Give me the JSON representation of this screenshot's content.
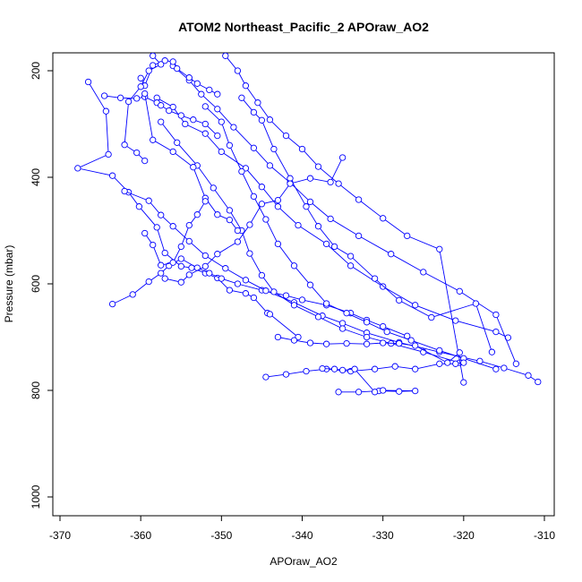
{
  "chart_data": {
    "type": "scatter",
    "title": "ATOM2 Northeast_Pacific_2 APOraw_AO2",
    "xlabel": "APOraw_AO2",
    "ylabel": "Pressure (mbar)",
    "xlim": [
      -370,
      -310
    ],
    "ylim": [
      1000,
      200
    ],
    "y_reversed": true,
    "x_ticks": [
      "-370",
      "-360",
      "-350",
      "-340",
      "-330",
      "-320",
      "-310"
    ],
    "y_ticks": [
      "200",
      "400",
      "600",
      "800",
      "1000"
    ],
    "grid": false,
    "legend": "none",
    "colors": {
      "series": "#0000ff",
      "axes": "#000000"
    },
    "series": [
      {
        "x": [
          -366.5,
          -364.3,
          -364.0,
          -367.8,
          -363.5,
          -361.5,
          -360.2,
          -358.0,
          -357.0,
          -355.0,
          -353.7,
          -352.0,
          -350.5,
          -349.0,
          -347.0,
          -346.0,
          -344.3,
          -344.0,
          -340.5
        ],
        "y": [
          221,
          276,
          357,
          383,
          397,
          428,
          455,
          494,
          542,
          567,
          570,
          580,
          589,
          612,
          618,
          626,
          655,
          657,
          700
        ]
      },
      {
        "x": [
          -363.5,
          -361.0,
          -359.0,
          -357.5,
          -356.5,
          -355.0,
          -353.0,
          -351.5,
          -350.0,
          -348.0,
          -345.0,
          -342.0,
          -340.0,
          -337.0,
          -334.0,
          -332.0,
          -330.0,
          -327.0
        ],
        "y": [
          638,
          620,
          596,
          580,
          566,
          553,
          570,
          580,
          590,
          600,
          612,
          622,
          630,
          640,
          655,
          668,
          680,
          698
        ]
      },
      {
        "x": [
          -362.0,
          -359.0,
          -357.5,
          -356.0,
          -354.0,
          -352.0,
          -349.5,
          -347.0,
          -344.5,
          -341.0,
          -337.5,
          -335.0,
          -332.0,
          -328.0,
          -323.0,
          -318.0,
          -315.0,
          -312.0,
          -310.8
        ],
        "y": [
          426,
          444,
          471,
          492,
          520,
          547,
          571,
          593,
          613,
          635,
          660,
          674,
          692,
          710,
          728,
          745,
          758,
          772,
          784
        ]
      },
      {
        "x": [
          -358.0,
          -356.0,
          -354.5,
          -352.0,
          -350.0,
          -347.0,
          -345.0,
          -343.0,
          -340.5,
          -337.0,
          -334.0,
          -330.0,
          -326.0,
          -321.0,
          -316.0,
          -314.5
        ],
        "y": [
          251,
          268,
          300,
          318,
          352,
          383,
          418,
          455,
          490,
          525,
          566,
          605,
          640,
          669,
          690,
          701
        ]
      },
      {
        "x": [
          -357.5,
          -355.5,
          -353.0,
          -351.0,
          -349.0,
          -347.5,
          -346.5,
          -345.0,
          -343.5,
          -341.0,
          -338.0,
          -335.0,
          -332.0,
          -329.0,
          -325.0,
          -320.5
        ],
        "y": [
          296,
          335,
          378,
          420,
          462,
          500,
          543,
          584,
          615,
          640,
          662,
          684,
          700,
          712,
          728,
          748
        ]
      },
      {
        "x": [
          -356.0,
          -354.0,
          -352.5,
          -350.5,
          -348.5,
          -346.0,
          -344.0,
          -341.5,
          -339.0,
          -336.5,
          -333.0,
          -329.0,
          -325.0,
          -320.5,
          -316.0,
          -313.5
        ],
        "y": [
          191,
          218,
          244,
          272,
          306,
          345,
          378,
          410,
          446,
          478,
          510,
          544,
          578,
          614,
          658,
          750
        ]
      },
      {
        "x": [
          -352.0,
          -350.0,
          -349.0,
          -347.5,
          -346.0,
          -344.5,
          -343.0,
          -341.0,
          -339.0,
          -337.0,
          -334.5,
          -332.0,
          -329.5,
          -326.5,
          -323.0,
          -320.0,
          -316.0
        ],
        "y": [
          267,
          296,
          340,
          389,
          436,
          479,
          525,
          566,
          602,
          637,
          655,
          672,
          690,
          706,
          725,
          740,
          760
        ]
      },
      {
        "x": [
          -349.5,
          -348.0,
          -347.0,
          -345.5,
          -344.0,
          -342.0,
          -340.0,
          -338.0,
          -335.5,
          -333.0,
          -330.0,
          -327.0,
          -323.0,
          -320.0
        ],
        "y": [
          172,
          200,
          228,
          260,
          292,
          322,
          347,
          380,
          412,
          442,
          477,
          510,
          535,
          785
        ]
      },
      {
        "x": [
          -347.5,
          -346.0,
          -345.0,
          -343.5,
          -341.5,
          -339.5,
          -338.0,
          -336.0,
          -334.0,
          -331.0,
          -328.0,
          -324.0,
          -318.5,
          -316.5
        ],
        "y": [
          251,
          278,
          293,
          347,
          402,
          455,
          492,
          530,
          548,
          590,
          631,
          663,
          637,
          728
        ]
      },
      {
        "x": [
          -335.0,
          -336.5,
          -339.0,
          -341.5,
          -343.0,
          -345.0,
          -346.5,
          -348.0,
          -350.5,
          -352.0,
          -354.0,
          -355.0,
          -357.0
        ],
        "y": [
          363,
          409,
          402,
          412,
          443,
          450,
          489,
          521,
          544,
          567,
          583,
          597,
          590
        ]
      },
      {
        "x": [
          -344.5,
          -342.0,
          -339.5,
          -337.0,
          -334.0,
          -331.0,
          -328.5,
          -326.0,
          -323.0,
          -321.0,
          -320.0
        ],
        "y": [
          775,
          770,
          764,
          760,
          764,
          760,
          755,
          760,
          750,
          750,
          748
        ]
      },
      {
        "x": [
          -335.5,
          -333.0,
          -330.5,
          -328.0,
          -326.0,
          -330.0,
          -331.0,
          -333.5,
          -335.0,
          -336.0,
          -337.5
        ],
        "y": [
          803,
          803,
          801,
          802,
          801,
          800,
          803,
          760,
          762,
          760,
          759
        ]
      },
      {
        "x": [
          -343.0,
          -341.0,
          -339.0,
          -337.0,
          -334.5,
          -332.0,
          -330.0,
          -328.0,
          -326.0,
          -322.0,
          -320.5
        ],
        "y": [
          700,
          706,
          711,
          713,
          712,
          713,
          711,
          712,
          716,
          748,
          729
        ]
      },
      {
        "x": [
          -364.5,
          -362.5,
          -360.5,
          -359.5,
          -358.0,
          -357.5,
          -356.5,
          -355.0,
          -353.5,
          -352.0,
          -350.5
        ],
        "y": [
          247,
          251,
          252,
          249,
          260,
          265,
          275,
          284,
          292,
          300,
          322
        ]
      },
      {
        "x": [
          -360.0,
          -359.5,
          -358.5,
          -357.0,
          -356.0,
          -355.5,
          -354.0,
          -353.0,
          -351.5,
          -350.5
        ],
        "y": [
          214,
          228,
          190,
          181,
          183,
          196,
          213,
          224,
          236,
          244
        ]
      },
      {
        "x": [
          -358.5,
          -357.5,
          -359.0,
          -360.0,
          -361.5,
          -362.0,
          -360.5,
          -359.5
        ],
        "y": [
          172,
          188,
          200,
          230,
          258,
          339,
          354,
          369
        ]
      },
      {
        "x": [
          -359.5,
          -358.5,
          -356.0,
          -353.5,
          -352.0,
          -350.5,
          -349.0,
          -348.0
        ],
        "y": [
          243,
          330,
          352,
          381,
          439,
          470,
          480,
          500
        ]
      },
      {
        "x": [
          -352.0,
          -353.0,
          -354.0,
          -355.0,
          -356.0,
          -357.5,
          -358.5,
          -359.5
        ],
        "y": [
          445,
          470,
          490,
          530,
          560,
          565,
          527,
          505
        ]
      }
    ]
  }
}
